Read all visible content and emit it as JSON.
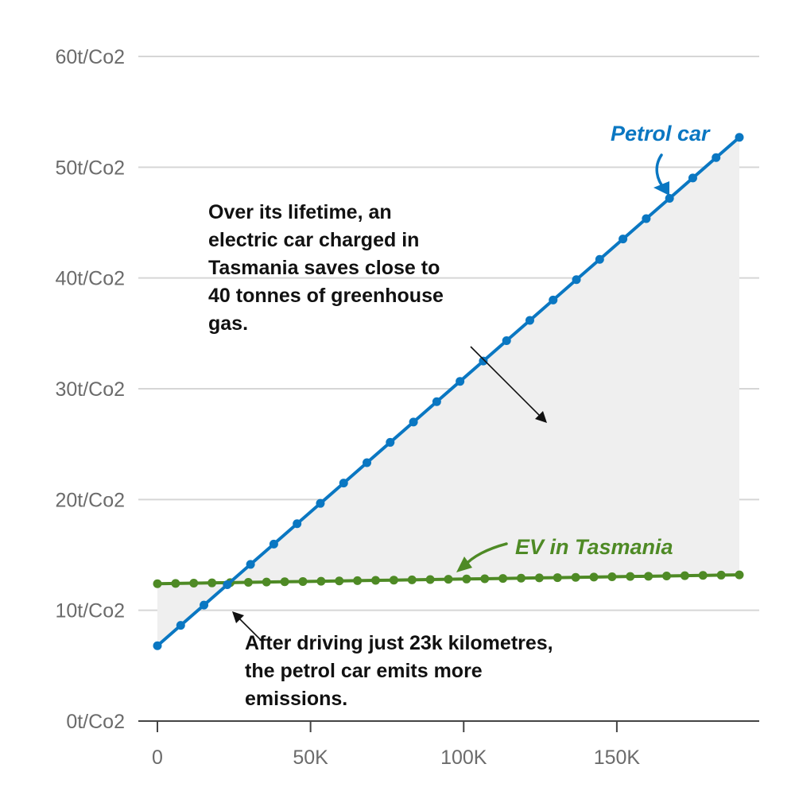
{
  "chart_data": {
    "type": "line",
    "title": "",
    "xlabel": "",
    "ylabel": "",
    "xlim": [
      0,
      190000
    ],
    "ylim": [
      0,
      60
    ],
    "x_ticks": [
      {
        "value": 0,
        "label": "0"
      },
      {
        "value": 50000,
        "label": "50K"
      },
      {
        "value": 100000,
        "label": "100K"
      },
      {
        "value": 150000,
        "label": "150K"
      }
    ],
    "y_ticks": [
      {
        "value": 0,
        "label": "0t/Co2"
      },
      {
        "value": 10,
        "label": "10t/Co2"
      },
      {
        "value": 20,
        "label": "20t/Co2"
      },
      {
        "value": 30,
        "label": "30t/Co2"
      },
      {
        "value": 40,
        "label": "40t/Co2"
      },
      {
        "value": 50,
        "label": "50t/Co2"
      },
      {
        "value": 60,
        "label": "60t/Co2"
      }
    ],
    "grid": true,
    "shade_between_series": true,
    "series": [
      {
        "name": "Petrol car",
        "color": "#0a77c2",
        "x": [
          0,
          190000
        ],
        "y": [
          6.8,
          52.7
        ],
        "points": 26
      },
      {
        "name": "EV in Tasmania",
        "color": "#4e8a25",
        "x": [
          0,
          190000
        ],
        "y": [
          12.4,
          13.2
        ],
        "points": 33
      }
    ],
    "annotations": [
      {
        "id": "savings",
        "lines": [
          "Over its lifetime, an",
          "electric car charged in",
          "Tasmania saves close to",
          "40 tonnes of greenhouse",
          "gas."
        ]
      },
      {
        "id": "crossover",
        "lines": [
          "After driving just 23k kilometres,",
          "the petrol car emits more",
          "emissions."
        ]
      }
    ]
  }
}
